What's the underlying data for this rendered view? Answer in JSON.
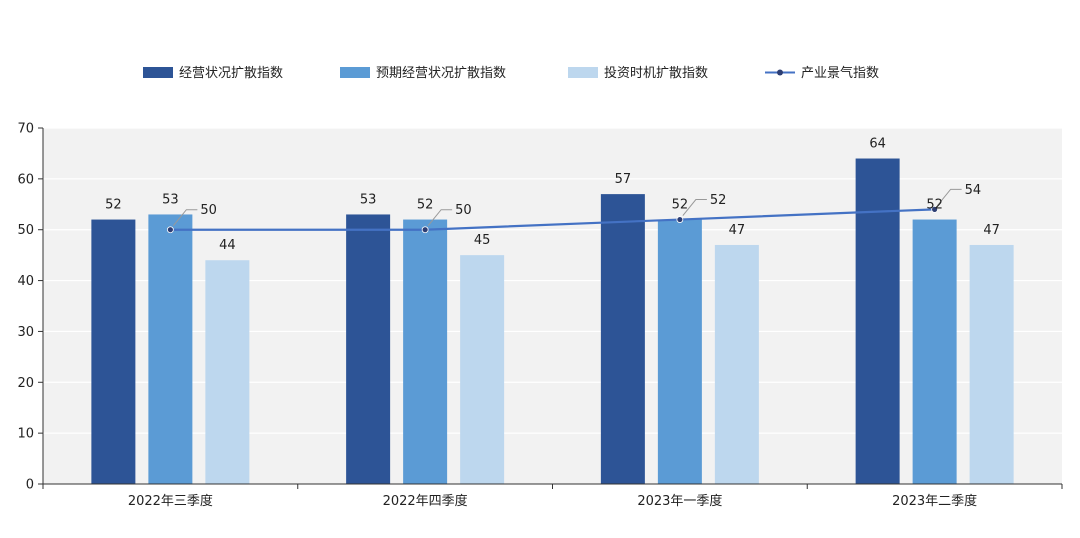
{
  "chart_data": {
    "type": "bar",
    "categories": [
      "2022年三季度",
      "2022年四季度",
      "2023年一季度",
      "2023年二季度"
    ],
    "series": [
      {
        "name": "经营状况扩散指数",
        "type": "bar",
        "color": "#2d5496",
        "values": [
          52,
          53,
          57,
          64
        ]
      },
      {
        "name": "预期经营状况扩散指数",
        "type": "bar",
        "color": "#5b9bd5",
        "values": [
          53,
          52,
          52,
          52
        ]
      },
      {
        "name": "投资时机扩散指数",
        "type": "bar",
        "color": "#bdd7ee",
        "values": [
          44,
          45,
          47,
          47
        ]
      },
      {
        "name": "产业景气指数",
        "type": "line",
        "color": "#4472c4",
        "values": [
          50,
          50,
          52,
          54
        ]
      }
    ],
    "ylim": [
      0,
      70
    ],
    "yticks": [
      "0",
      "10",
      "20",
      "30",
      "40",
      "50",
      "60",
      "70"
    ],
    "grid": true,
    "legend_position": "top",
    "plot_background": "#f2f2f2"
  }
}
